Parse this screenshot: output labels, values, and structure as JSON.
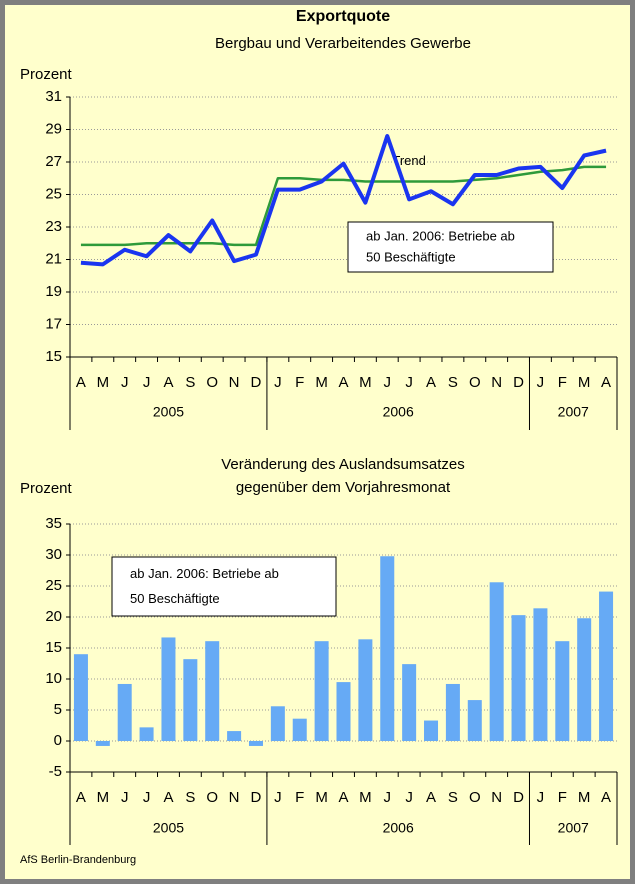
{
  "source": "AfS Berlin-Brandenburg",
  "chart_data": [
    {
      "type": "line",
      "title": "Exportquote",
      "subtitle": "Bergbau und Verarbeitendes Gewerbe",
      "ylabel": "Prozent",
      "category_groups": [
        {
          "label": "2005",
          "categories": [
            "A",
            "M",
            "J",
            "J",
            "A",
            "S",
            "O",
            "N",
            "D"
          ]
        },
        {
          "label": "2006",
          "categories": [
            "J",
            "F",
            "M",
            "A",
            "M",
            "J",
            "J",
            "A",
            "S",
            "O",
            "N",
            "D"
          ]
        },
        {
          "label": "2007",
          "categories": [
            "J",
            "F",
            "M",
            "A"
          ]
        }
      ],
      "series": [
        {
          "color": "#1a35f0",
          "values": [
            20.8,
            20.7,
            21.6,
            21.2,
            22.5,
            21.5,
            23.4,
            20.9,
            21.3,
            25.3,
            25.3,
            25.8,
            26.9,
            24.5,
            28.6,
            24.7,
            25.2,
            24.4,
            26.2,
            26.2,
            26.6,
            26.7,
            25.4,
            27.4,
            27.7
          ]
        },
        {
          "name": "Trend",
          "color": "#2e9a3a",
          "values": [
            21.9,
            21.9,
            21.9,
            22.0,
            22.0,
            22.0,
            22.0,
            21.9,
            21.9,
            26.0,
            26.0,
            25.9,
            25.9,
            25.8,
            25.8,
            25.8,
            25.8,
            25.8,
            25.9,
            26.0,
            26.2,
            26.4,
            26.5,
            26.7,
            26.7
          ]
        }
      ],
      "ylim": [
        15,
        31
      ],
      "yticks": [
        15,
        17,
        19,
        21,
        23,
        25,
        27,
        29,
        31
      ],
      "grid": true,
      "annotation": [
        "ab Jan. 2006: Betriebe ab",
        "50 Beschäftigte"
      ]
    },
    {
      "type": "bar",
      "title": "Veränderung des Auslandsumsatzes",
      "subtitle": "gegenüber dem Vorjahresmonat",
      "ylabel": "Prozent",
      "category_groups": [
        {
          "label": "2005",
          "categories": [
            "A",
            "M",
            "J",
            "J",
            "A",
            "S",
            "O",
            "N",
            "D"
          ]
        },
        {
          "label": "2006",
          "categories": [
            "J",
            "F",
            "M",
            "A",
            "M",
            "J",
            "J",
            "A",
            "S",
            "O",
            "N",
            "D"
          ]
        },
        {
          "label": "2007",
          "categories": [
            "J",
            "F",
            "M",
            "A"
          ]
        }
      ],
      "color": "#66aaf5",
      "values": [
        14.0,
        -0.8,
        9.2,
        2.2,
        16.7,
        13.2,
        16.1,
        1.6,
        -0.8,
        5.6,
        3.6,
        16.1,
        9.5,
        16.4,
        29.8,
        12.4,
        3.3,
        9.2,
        6.6,
        25.6,
        20.3,
        21.4,
        16.1,
        19.8,
        24.1
      ],
      "ylim": [
        -5,
        35
      ],
      "yticks": [
        -5,
        0,
        5,
        10,
        15,
        20,
        25,
        30,
        35
      ],
      "grid": true,
      "annotation": [
        "ab Jan. 2006: Betriebe ab",
        "50 Beschäftigte"
      ]
    }
  ]
}
